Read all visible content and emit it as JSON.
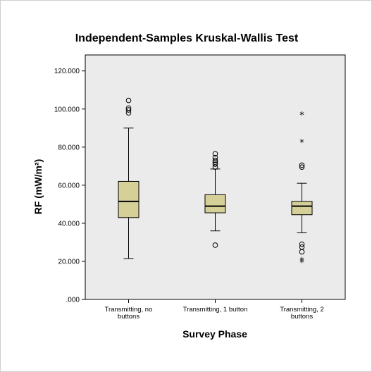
{
  "chart_data": {
    "type": "boxplot",
    "title": "Independent-Samples Kruskal-Wallis Test",
    "xlabel": "Survey Phase",
    "ylabel": "RF (mW/m²)",
    "ylim": [
      0,
      120
    ],
    "yticks": [
      {
        "value": 0,
        "label": ".000"
      },
      {
        "value": 20,
        "label": "20.000"
      },
      {
        "value": 40,
        "label": "40.000"
      },
      {
        "value": 60,
        "label": "60.000"
      },
      {
        "value": 80,
        "label": "80.000"
      },
      {
        "value": 100,
        "label": "100.000"
      },
      {
        "value": 120,
        "label": "120.000"
      }
    ],
    "grid": false,
    "box_color": "#d5cf98",
    "plot_background": "#ebebeb",
    "categories": [
      {
        "lines": [
          "Transmitting, no",
          "buttons"
        ]
      },
      {
        "lines": [
          "Transmitting, 1 button"
        ]
      },
      {
        "lines": [
          "Transmitting, 2",
          "buttons"
        ]
      }
    ],
    "boxes": [
      {
        "whisker_low": 21.5,
        "q1": 43,
        "median": 51.5,
        "q3": 62,
        "whisker_high": 90,
        "outliers": [
          98,
          99.5,
          100.5,
          104.5
        ],
        "extremes": []
      },
      {
        "whisker_low": 36,
        "q1": 45.5,
        "median": 49,
        "q3": 55,
        "whisker_high": 68.5,
        "outliers": [
          28.5,
          69.5,
          71,
          72,
          73,
          74.5,
          76.5
        ],
        "extremes": []
      },
      {
        "whisker_low": 35,
        "q1": 44.5,
        "median": 49,
        "q3": 51.5,
        "whisker_high": 61,
        "outliers": [
          25,
          27.5,
          29,
          69.5,
          70.5
        ],
        "extremes": [
          19.5,
          20.5,
          82.5,
          97
        ]
      }
    ]
  }
}
